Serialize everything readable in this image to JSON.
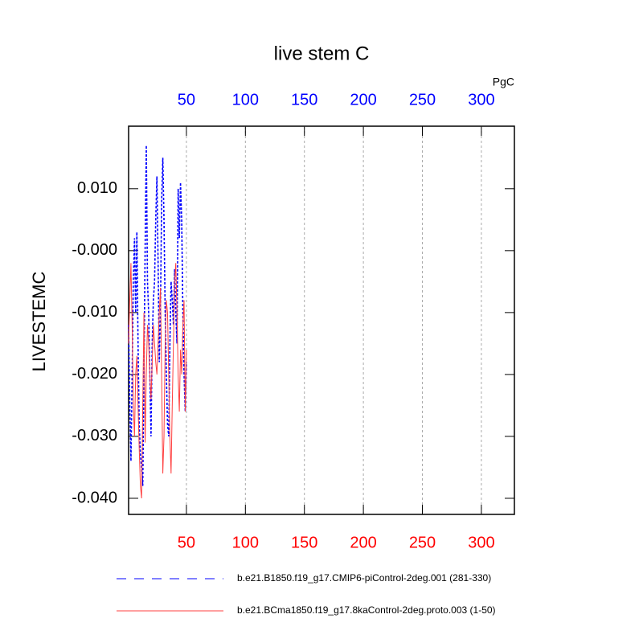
{
  "chart_data": {
    "type": "line",
    "title": "live stem C",
    "ylabel": "LIVESTEMC",
    "annotation": "PgC",
    "x": [
      1,
      2,
      3,
      4,
      5,
      6,
      7,
      8,
      9,
      10,
      11,
      12,
      13,
      14,
      15,
      16,
      17,
      18,
      19,
      20,
      21,
      22,
      23,
      24,
      25,
      26,
      27,
      28,
      29,
      30,
      31,
      32,
      33,
      34,
      35,
      36,
      37,
      38,
      39,
      40,
      41,
      42,
      43,
      44,
      45,
      46,
      47,
      48,
      49,
      50
    ],
    "series": [
      {
        "name": "b.e21.B1850.f19_g17.CMIP6-piControl-2deg.001 (281-330)",
        "color": "#0000ff",
        "dash": true,
        "values": [
          -0.012,
          -0.025,
          -0.034,
          -0.02,
          -0.005,
          0.002,
          -0.01,
          0.003,
          -0.015,
          -0.028,
          -0.033,
          -0.035,
          -0.038,
          -0.02,
          0.0,
          0.017,
          -0.005,
          -0.01,
          -0.02,
          -0.03,
          -0.015,
          -0.008,
          -0.005,
          0.005,
          0.012,
          -0.002,
          -0.018,
          -0.01,
          0.008,
          0.015,
          0.005,
          -0.01,
          -0.02,
          -0.028,
          -0.03,
          -0.015,
          -0.005,
          -0.008,
          -0.012,
          -0.003,
          -0.01,
          -0.015,
          0.01,
          0.002,
          0.011,
          0.005,
          -0.01,
          -0.02,
          -0.026,
          -0.018
        ]
      },
      {
        "name": "b.e21.BCma1850.f19_g17.8kaControl-2deg.proto.003 (1-50)",
        "color": "#ff4040",
        "dash": false,
        "values": [
          -0.015,
          -0.008,
          -0.002,
          -0.012,
          -0.025,
          -0.03,
          -0.02,
          -0.017,
          -0.025,
          -0.032,
          -0.038,
          -0.04,
          -0.025,
          -0.01,
          -0.031,
          -0.02,
          -0.012,
          -0.015,
          -0.02,
          -0.024,
          -0.018,
          -0.012,
          -0.015,
          -0.018,
          -0.02,
          -0.015,
          -0.01,
          -0.006,
          -0.02,
          -0.036,
          -0.03,
          -0.015,
          -0.008,
          -0.01,
          -0.02,
          -0.03,
          -0.036,
          -0.025,
          -0.015,
          -0.005,
          -0.002,
          -0.01,
          -0.02,
          -0.026,
          -0.016,
          -0.02,
          -0.012,
          -0.008,
          -0.026,
          -0.016
        ]
      }
    ],
    "xlim": [
      1,
      328
    ],
    "xticks": [
      50,
      100,
      150,
      200,
      250,
      300
    ],
    "top_tick_color": "#0000ff",
    "bottom_tick_color": "#ff0000",
    "ylim": [
      -0.0426,
      0.0201
    ],
    "yticks": [
      {
        "value": 0.01,
        "label": "0.010"
      },
      {
        "value": 0,
        "label": "-0.000"
      },
      {
        "value": -0.01,
        "label": "-0.010"
      },
      {
        "value": -0.02,
        "label": "-0.020"
      },
      {
        "value": -0.03,
        "label": "-0.030"
      },
      {
        "value": -0.04,
        "label": "-0.040"
      }
    ],
    "grid": true
  }
}
